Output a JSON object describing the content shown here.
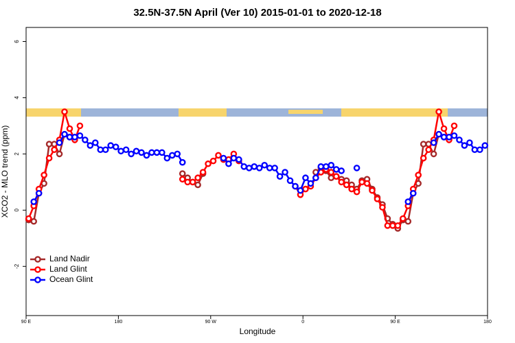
{
  "chart_data": {
    "type": "line",
    "title": "32.5N-37.5N April (Ver 10)   2015-01-01 to 2020-12-18",
    "x_label": "Longitude",
    "y_label": "XCO2 - MLO trend (ppm)",
    "x": [
      92.5,
      97.5,
      102.5,
      107.5,
      112.5,
      117.5,
      122.5,
      127.5,
      132.5,
      137.5,
      142.5,
      147.5,
      152.5,
      157.5,
      162.5,
      167.5,
      172.5,
      177.5,
      182.5,
      187.5,
      192.5,
      197.5,
      202.5,
      207.5,
      212.5,
      217.5,
      222.5,
      227.5,
      232.5,
      237.5,
      242.5,
      247.5,
      252.5,
      257.5,
      262.5,
      267.5,
      272.5,
      277.5,
      282.5,
      287.5,
      292.5,
      297.5,
      302.5,
      307.5,
      312.5,
      317.5,
      322.5,
      327.5,
      332.5,
      337.5,
      342.5,
      347.5,
      352.5,
      357.5,
      362.5,
      367.5,
      372.5,
      377.5,
      382.5,
      387.5,
      392.5,
      397.5,
      402.5,
      407.5,
      412.5,
      417.5,
      422.5,
      427.5,
      432.5,
      437.5,
      442.5,
      447.5,
      452.5,
      457.5,
      462.5,
      467.5,
      472.5,
      477.5,
      482.5,
      487.5,
      492.5,
      497.5,
      502.5,
      507.5,
      512.5,
      517.5,
      522.5,
      527.5,
      532.5,
      537.5
    ],
    "series": [
      {
        "name": "Land Nadir",
        "color": "#a52a2a",
        "values": [
          -0.35,
          -0.4,
          0.6,
          0.95,
          2.35,
          2.35,
          2.0,
          2.7,
          2.6,
          2.55,
          null,
          null,
          null,
          null,
          null,
          null,
          null,
          null,
          null,
          null,
          null,
          null,
          null,
          null,
          null,
          null,
          null,
          null,
          null,
          null,
          1.3,
          1.15,
          1.0,
          0.9,
          1.3,
          null,
          null,
          null,
          null,
          null,
          null,
          null,
          null,
          null,
          null,
          null,
          null,
          null,
          null,
          null,
          null,
          null,
          null,
          null,
          null,
          null,
          1.35,
          1.5,
          1.4,
          1.15,
          1.2,
          1.1,
          1.05,
          0.9,
          0.75,
          1.05,
          1.1,
          0.75,
          0.45,
          0.2,
          -0.3,
          -0.5,
          -0.65,
          -0.35,
          -0.4,
          0.6,
          0.95,
          2.35,
          2.35,
          2.0,
          2.7,
          2.6,
          2.55,
          null,
          null,
          null,
          null,
          null,
          null,
          null
        ]
      },
      {
        "name": "Land Glint",
        "color": "#ff0000",
        "values": [
          -0.3,
          0.15,
          0.75,
          1.25,
          1.85,
          2.15,
          2.5,
          3.5,
          2.9,
          2.5,
          3.0,
          null,
          null,
          null,
          null,
          null,
          null,
          null,
          null,
          null,
          null,
          null,
          null,
          null,
          null,
          null,
          null,
          null,
          null,
          null,
          1.1,
          1.0,
          1.0,
          1.15,
          1.35,
          1.65,
          1.75,
          1.95,
          1.8,
          1.8,
          2.0,
          1.75,
          null,
          null,
          null,
          null,
          null,
          null,
          null,
          null,
          null,
          null,
          0.85,
          0.55,
          0.75,
          0.85,
          1.15,
          1.35,
          1.45,
          1.35,
          1.2,
          1.0,
          0.9,
          0.75,
          0.65,
          1.0,
          0.95,
          0.7,
          0.4,
          0.1,
          -0.55,
          -0.55,
          -0.55,
          -0.3,
          0.15,
          0.75,
          1.25,
          1.85,
          2.15,
          2.5,
          3.5,
          2.9,
          2.5,
          3.0,
          null,
          null,
          null,
          null,
          null,
          null
        ]
      },
      {
        "name": "Ocean Glint",
        "color": "#0000ff",
        "values": [
          null,
          0.3,
          0.6,
          null,
          null,
          null,
          2.4,
          2.7,
          2.6,
          2.6,
          2.65,
          2.5,
          2.3,
          2.4,
          2.15,
          2.15,
          2.3,
          2.25,
          2.1,
          2.15,
          2.0,
          2.1,
          2.05,
          1.95,
          2.05,
          2.05,
          2.05,
          1.85,
          1.95,
          2.0,
          1.7,
          null,
          null,
          null,
          null,
          null,
          null,
          null,
          1.85,
          1.65,
          1.85,
          1.8,
          1.55,
          1.5,
          1.55,
          1.5,
          1.6,
          1.5,
          1.5,
          1.2,
          1.35,
          1.05,
          0.85,
          0.7,
          1.15,
          0.95,
          1.15,
          1.55,
          1.55,
          1.6,
          1.45,
          1.4,
          null,
          null,
          1.5,
          null,
          null,
          null,
          null,
          null,
          null,
          null,
          null,
          null,
          0.3,
          0.6,
          null,
          null,
          null,
          2.4,
          2.7,
          2.6,
          2.6,
          2.65,
          2.5,
          2.3,
          2.4,
          2.15,
          2.15,
          2.3
        ]
      }
    ],
    "xlim": [
      90,
      540
    ],
    "xticks": [
      {
        "value": 90,
        "label": "90 E"
      },
      180,
      {
        "value": 270,
        "label": "90 W"
      },
      {
        "value": 360,
        "label": "0"
      },
      {
        "value": 450,
        "label": "90 E"
      },
      {
        "value": 540,
        "label": "180"
      }
    ],
    "ylim": [
      -3.75,
      6.5
    ],
    "yticks": [
      -2,
      0,
      2,
      4,
      6
    ],
    "legend": "bottom-left"
  }
}
